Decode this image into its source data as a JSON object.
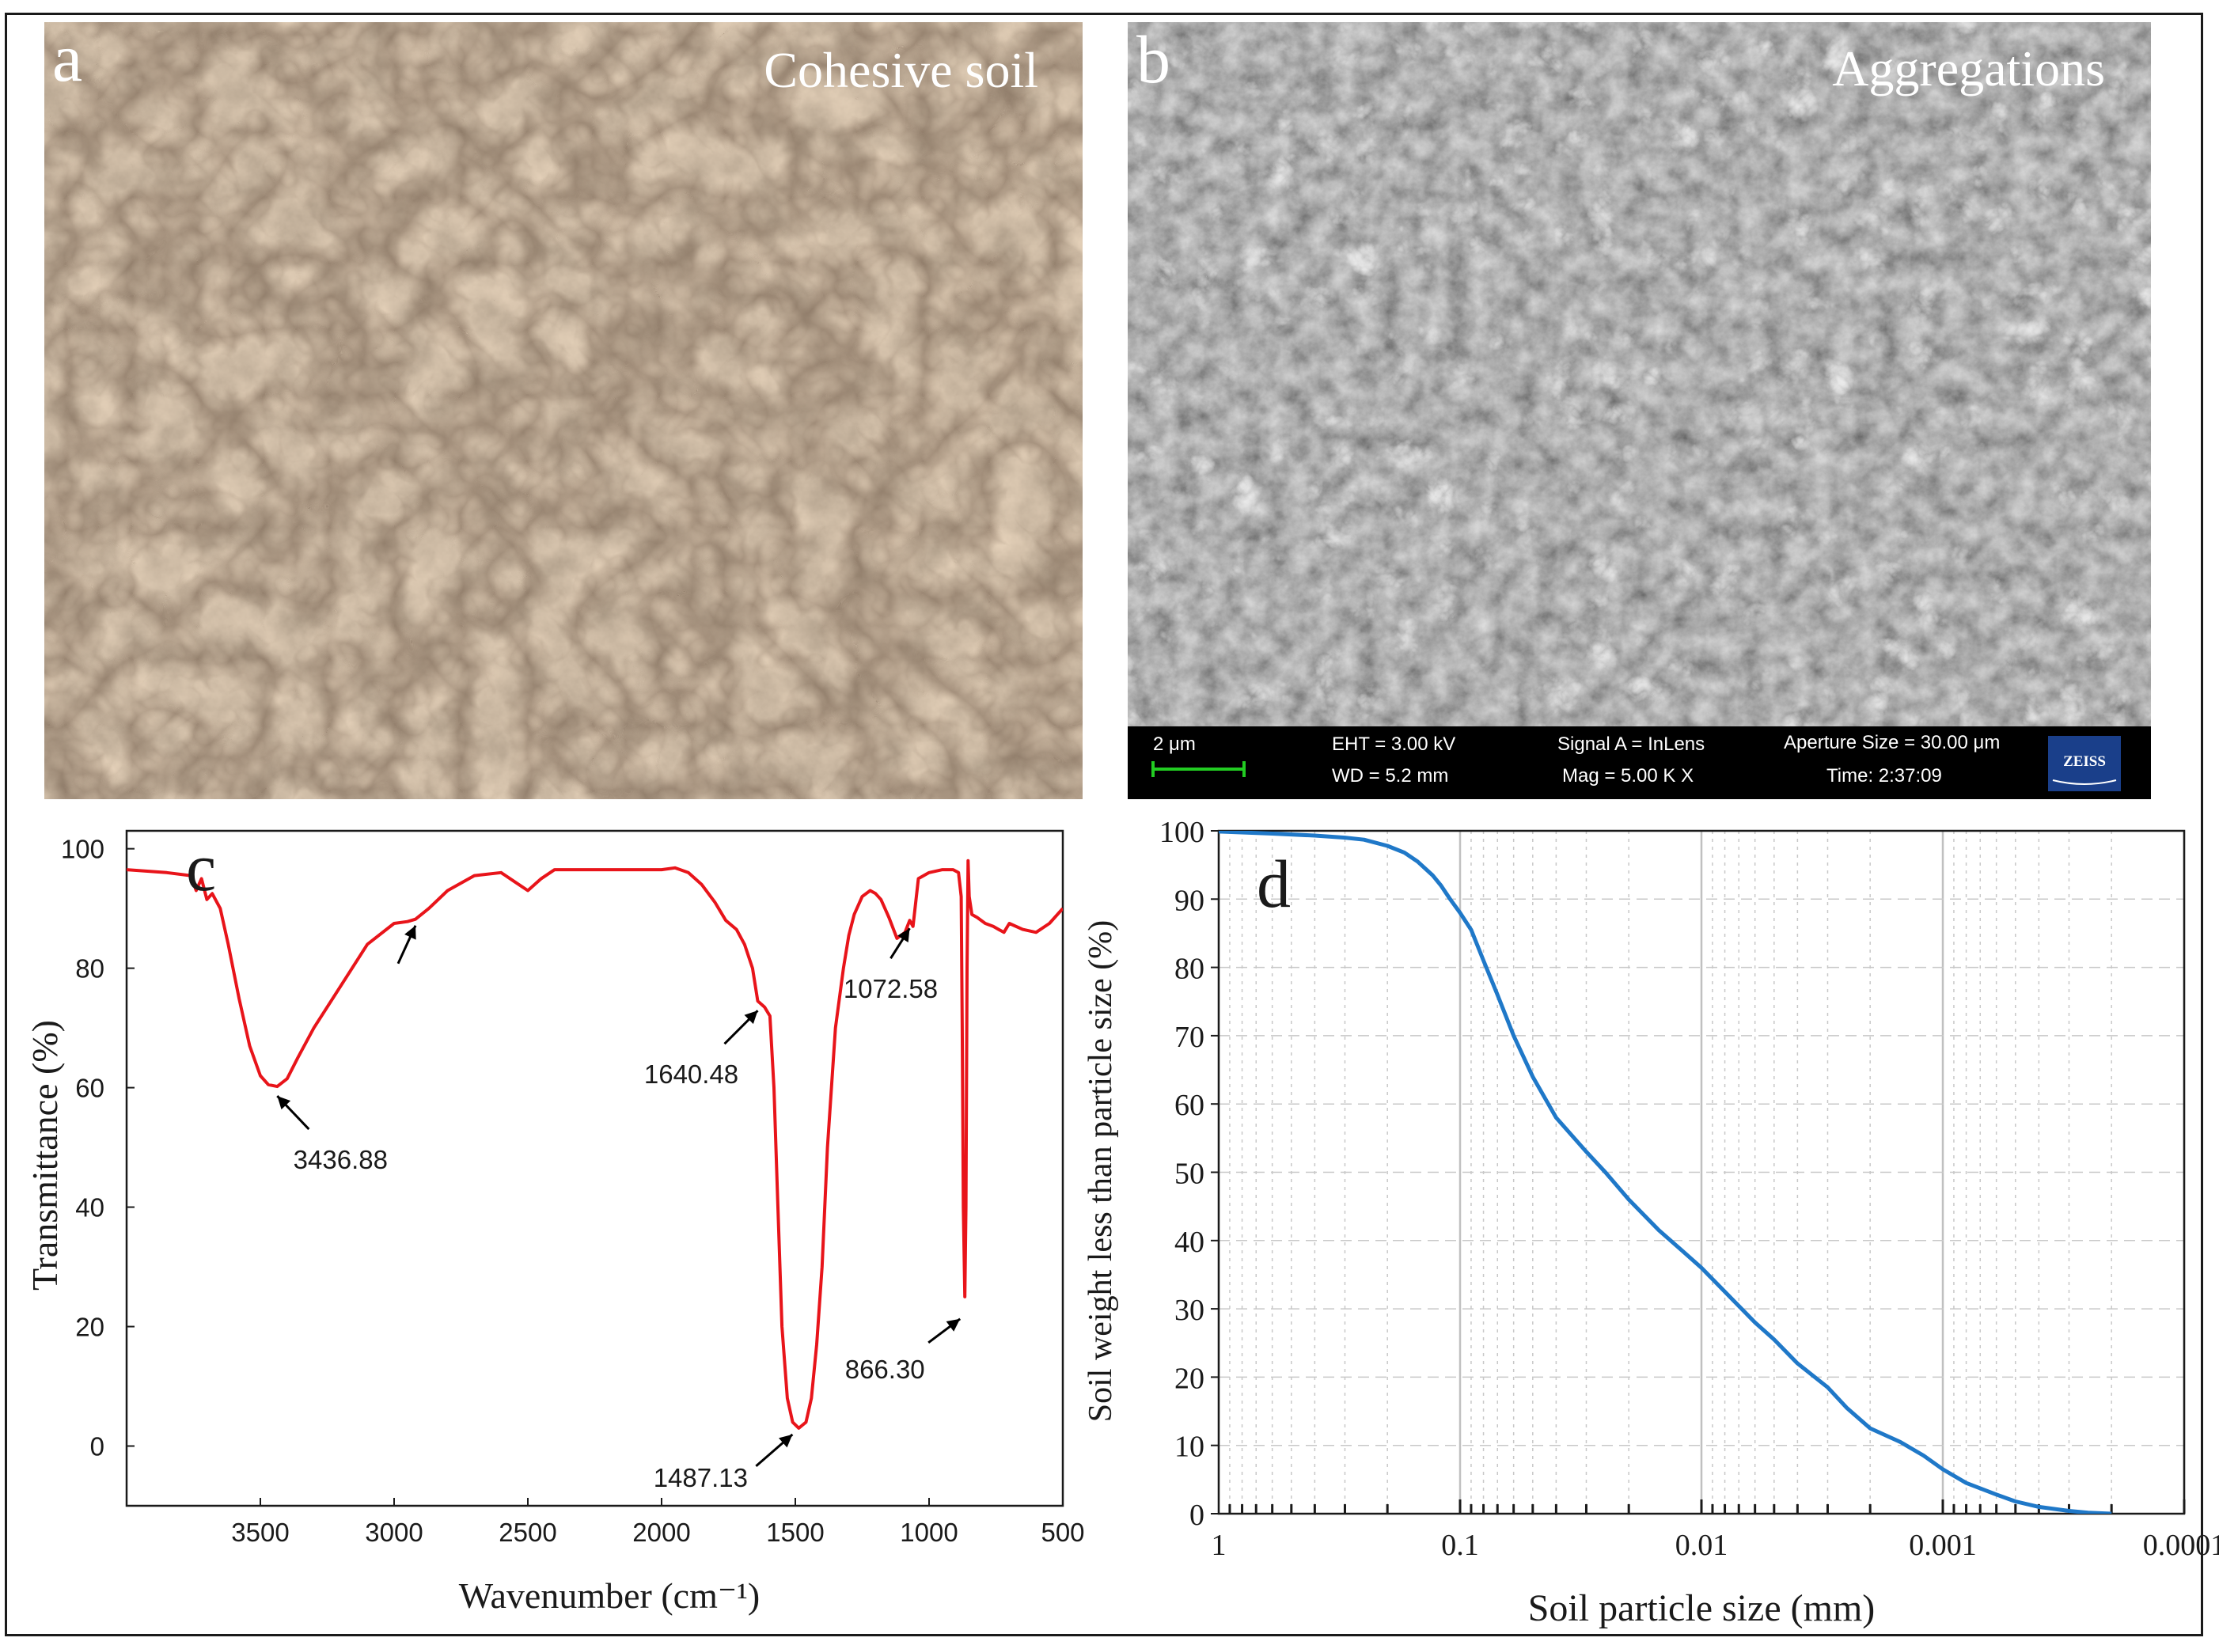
{
  "panels": {
    "a": {
      "letter": "a",
      "label": "Cohesive soil"
    },
    "b": {
      "letter": "b",
      "label": "Aggregations",
      "sem_info": {
        "scale_bar": "2 μm",
        "eht": "EHT =  3.00 kV",
        "wd": "WD =  5.2 mm",
        "signal": "Signal A = InLens",
        "mag": "Mag =     5.00 K X",
        "aperture": "Aperture Size = 30.00 μm",
        "time": "Time: 2:37:09",
        "logo": "ZEISS"
      }
    },
    "c": {
      "letter": "c"
    },
    "d": {
      "letter": "d"
    }
  },
  "colors": {
    "ftir_line": "#e8141a",
    "psd_line": "#1f78c8",
    "soil_base": "#a98b6c",
    "sem_base": "#6e6e6e",
    "scale_bar": "#22cc22"
  },
  "chart_data": [
    {
      "type": "line",
      "panel": "c",
      "xlabel": "Wavenumber (cm⁻¹)",
      "ylabel": "Transmittance (%)",
      "xlim": [
        4000,
        500
      ],
      "ylim": [
        -10,
        103
      ],
      "x_reversed": true,
      "xticks": [
        3500,
        3000,
        2500,
        2000,
        1500,
        1000,
        500
      ],
      "yticks": [
        0,
        20,
        40,
        60,
        80,
        100
      ],
      "grid": false,
      "series": [
        {
          "x": [
            4000,
            3850,
            3760,
            3740,
            3720,
            3700,
            3680,
            3650,
            3620,
            3580,
            3540,
            3500,
            3470,
            3436.88,
            3400,
            3360,
            3300,
            3200,
            3100,
            3000,
            2950,
            2920,
            2870,
            2800,
            2700,
            2600,
            2550,
            2500,
            2450,
            2400,
            2300,
            2200,
            2100,
            2000,
            1950,
            1900,
            1850,
            1800,
            1760,
            1720,
            1690,
            1660,
            1640.48,
            1615,
            1595,
            1580,
            1565,
            1550,
            1530,
            1510,
            1487.13,
            1460,
            1440,
            1420,
            1400,
            1380,
            1350,
            1320,
            1300,
            1280,
            1250,
            1220,
            1200,
            1180,
            1150,
            1120,
            1090,
            1072.58,
            1060,
            1040,
            1000,
            950,
            910,
            890,
            880,
            876,
            872,
            866.3,
            862,
            858,
            854,
            850,
            840,
            820,
            790,
            760,
            740,
            720,
            700,
            650,
            600,
            550,
            500
          ],
          "y": [
            96.5,
            96,
            95.5,
            93,
            95,
            91.5,
            92.5,
            90,
            84,
            75,
            67,
            62,
            60.5,
            60.2,
            61.5,
            65,
            70,
            77,
            84,
            87.5,
            87.8,
            88.2,
            90,
            93,
            95.5,
            96,
            94.5,
            93,
            95,
            96.5,
            96.5,
            96.5,
            96.5,
            96.5,
            96.8,
            96,
            94,
            91,
            88,
            86.5,
            84,
            80,
            74.5,
            73.5,
            72,
            60,
            40,
            20,
            8,
            4,
            3,
            4,
            8,
            17,
            30,
            50,
            70,
            80,
            85.5,
            89,
            92,
            93,
            92.5,
            91.5,
            88.5,
            85,
            86,
            88,
            87,
            95,
            96,
            96.5,
            96.5,
            96,
            92,
            70,
            40,
            25,
            40,
            80,
            98,
            92,
            89,
            88.5,
            87.5,
            87,
            86.5,
            86,
            87.5,
            86.5,
            86,
            87.5,
            90
          ]
        }
      ],
      "annotations": [
        {
          "text": "3436.88",
          "x": 3436.88,
          "y": 60.2
        },
        {
          "text": "",
          "x": 2920,
          "y": 88.2
        },
        {
          "text": "1640.48",
          "x": 1640.48,
          "y": 74.5
        },
        {
          "text": "1487.13",
          "x": 1487.13,
          "y": 3
        },
        {
          "text": "1072.58",
          "x": 1072.58,
          "y": 88
        },
        {
          "text": "866.30",
          "x": 866.3,
          "y": 25
        }
      ]
    },
    {
      "type": "line",
      "panel": "d",
      "xlabel": "Soil particle size (mm)",
      "ylabel": "Soil weight less than particle size (%)",
      "xscale": "log",
      "x_reversed": true,
      "xlim": [
        1,
        0.0001
      ],
      "ylim": [
        0,
        100
      ],
      "xticks": [
        1,
        0.1,
        0.01,
        0.001,
        0.0001
      ],
      "xtick_labels": [
        "1",
        "0.1",
        "0.01",
        "0.001",
        "0.0001"
      ],
      "yticks": [
        0,
        10,
        20,
        30,
        40,
        50,
        60,
        70,
        80,
        90,
        100
      ],
      "grid": true,
      "series": [
        {
          "x": [
            1,
            0.6,
            0.4,
            0.3,
            0.25,
            0.2,
            0.17,
            0.15,
            0.13,
            0.12,
            0.11,
            0.1,
            0.09,
            0.08,
            0.07,
            0.06,
            0.05,
            0.04,
            0.03,
            0.025,
            0.02,
            0.015,
            0.012,
            0.01,
            0.008,
            0.006,
            0.005,
            0.004,
            0.003,
            0.0025,
            0.002,
            0.0015,
            0.0012,
            0.001,
            0.0008,
            0.0006,
            0.0005,
            0.0004,
            0.0003,
            0.00025,
            0.0002
          ],
          "y": [
            99.9,
            99.6,
            99.3,
            99,
            98.7,
            97.8,
            96.8,
            95.5,
            93.5,
            92,
            90,
            88,
            85.5,
            81,
            76,
            70,
            64,
            58,
            53,
            50,
            46,
            41.5,
            38.5,
            36,
            32.5,
            28,
            25.5,
            22,
            18.5,
            15.5,
            12.5,
            10.5,
            8.5,
            6.5,
            4.5,
            2.8,
            1.8,
            1,
            0.4,
            0.15,
            0
          ]
        }
      ]
    }
  ]
}
